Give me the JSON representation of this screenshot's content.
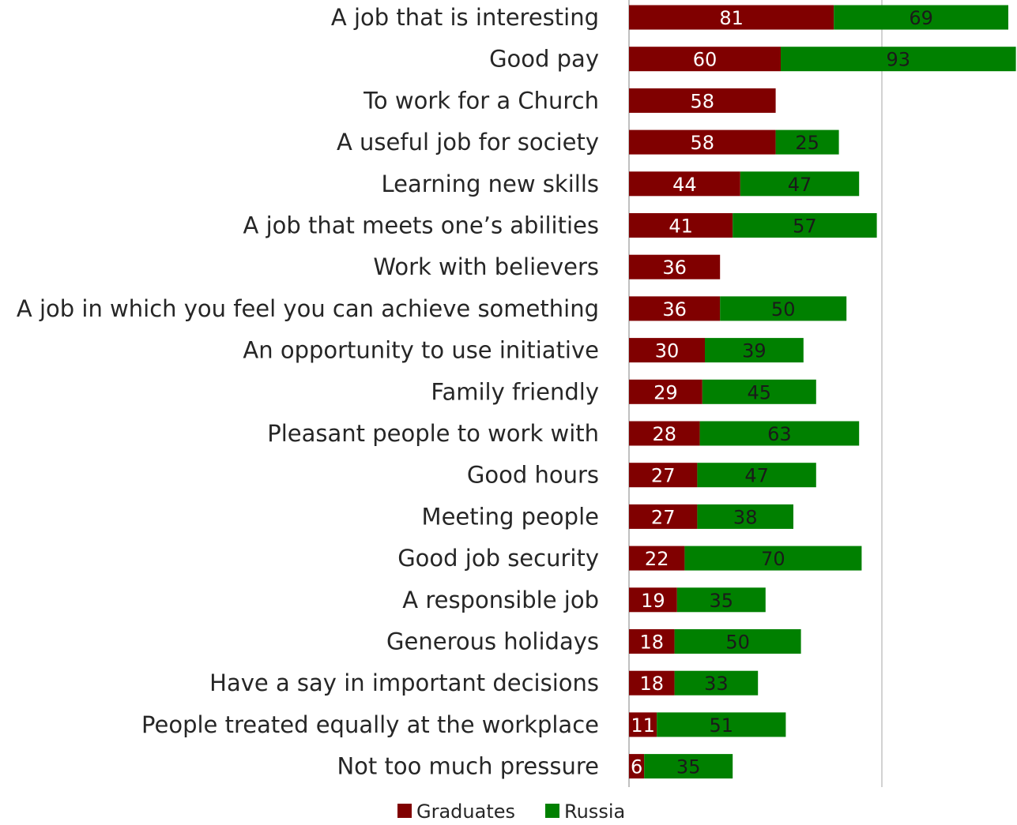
{
  "chart_data": {
    "type": "bar",
    "orientation": "horizontal",
    "stacked": true,
    "categories": [
      "A job that is interesting",
      "Good pay",
      "To work for a Church",
      "A useful job for society",
      "Learning new skills",
      "A job that meets one’s abilities",
      "Work with believers",
      "A job in which you feel you can achieve something",
      "An opportunity to use initiative",
      "Family friendly",
      "Pleasant people to work with",
      "Good hours",
      "Meeting people",
      "Good job security",
      "A responsible job",
      "Generous holidays",
      "Have a say in important decisions",
      "People treated equally at the workplace",
      "Not too much pressure"
    ],
    "series": [
      {
        "name": "Graduates",
        "color": "#800000",
        "label_color": "#ffffff",
        "values": [
          81,
          60,
          58,
          58,
          44,
          41,
          36,
          36,
          30,
          29,
          28,
          27,
          27,
          22,
          19,
          18,
          18,
          11,
          6
        ]
      },
      {
        "name": "Russia",
        "color": "#008000",
        "label_color": "#1a1a1a",
        "values": [
          69,
          93,
          null,
          25,
          47,
          57,
          null,
          50,
          39,
          45,
          63,
          47,
          38,
          70,
          35,
          50,
          33,
          51,
          35
        ]
      }
    ],
    "xlim": [
      0,
      160
    ],
    "gridlines_at": [
      100
    ],
    "legend_position": "bottom",
    "title": "",
    "xlabel": "",
    "ylabel": ""
  }
}
